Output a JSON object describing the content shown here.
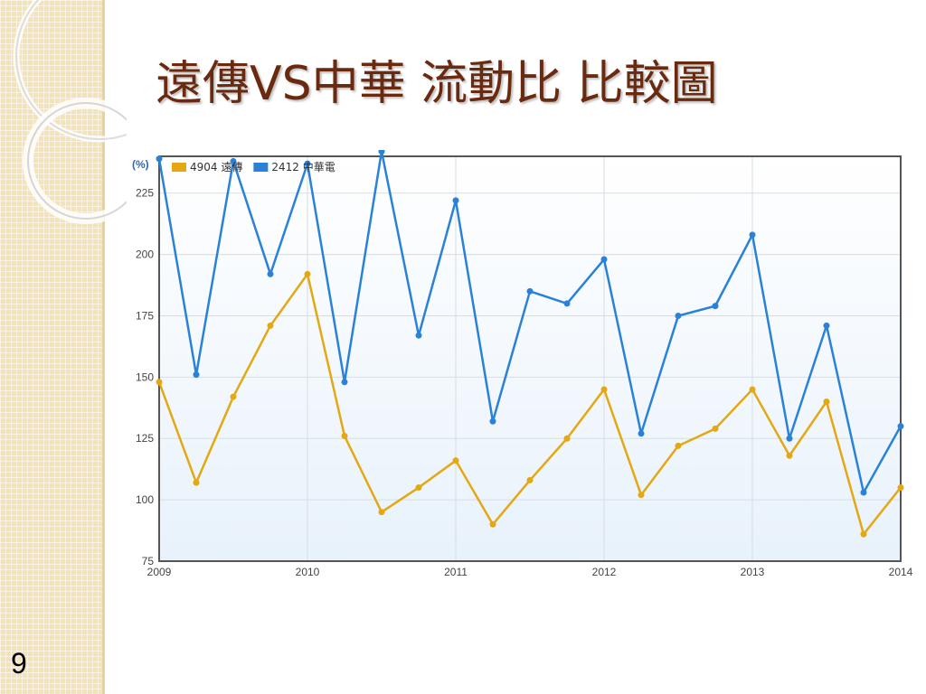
{
  "slide": {
    "title": "遠傳VS中華 流動比 比較圖",
    "page_number": "9"
  },
  "colors": {
    "series_1": "#e3a814",
    "series_2": "#2a82d8",
    "title": "#6a2a0f",
    "unit_label": "#2a6cb8"
  },
  "chart_data": {
    "type": "line",
    "ylabel": "(%)",
    "ylim": [
      75,
      240
    ],
    "yticks": [
      75,
      100,
      125,
      150,
      175,
      200,
      225
    ],
    "x_range": [
      2009,
      2014
    ],
    "xticks": [
      "2009",
      "2010",
      "2011",
      "2012",
      "2013",
      "2014"
    ],
    "grid": true,
    "legend_position": "top-left",
    "x": [
      2009.0,
      2009.25,
      2009.5,
      2009.75,
      2010.0,
      2010.25,
      2010.5,
      2010.75,
      2011.0,
      2011.25,
      2011.5,
      2011.75,
      2012.0,
      2012.25,
      2012.5,
      2012.75,
      2013.0,
      2013.25,
      2013.5,
      2013.75,
      2014.0
    ],
    "series": [
      {
        "name": "4904 遠傳",
        "values": [
          148,
          107,
          142,
          171,
          192,
          126,
          95,
          105,
          116,
          90,
          108,
          125,
          145,
          102,
          122,
          129,
          145,
          118,
          140,
          86,
          105
        ]
      },
      {
        "name": "2412 中華電",
        "values": [
          239,
          151,
          238,
          192,
          237,
          148,
          242,
          167,
          222,
          132,
          185,
          180,
          198,
          127,
          175,
          179,
          208,
          125,
          171,
          103,
          130
        ]
      }
    ]
  }
}
